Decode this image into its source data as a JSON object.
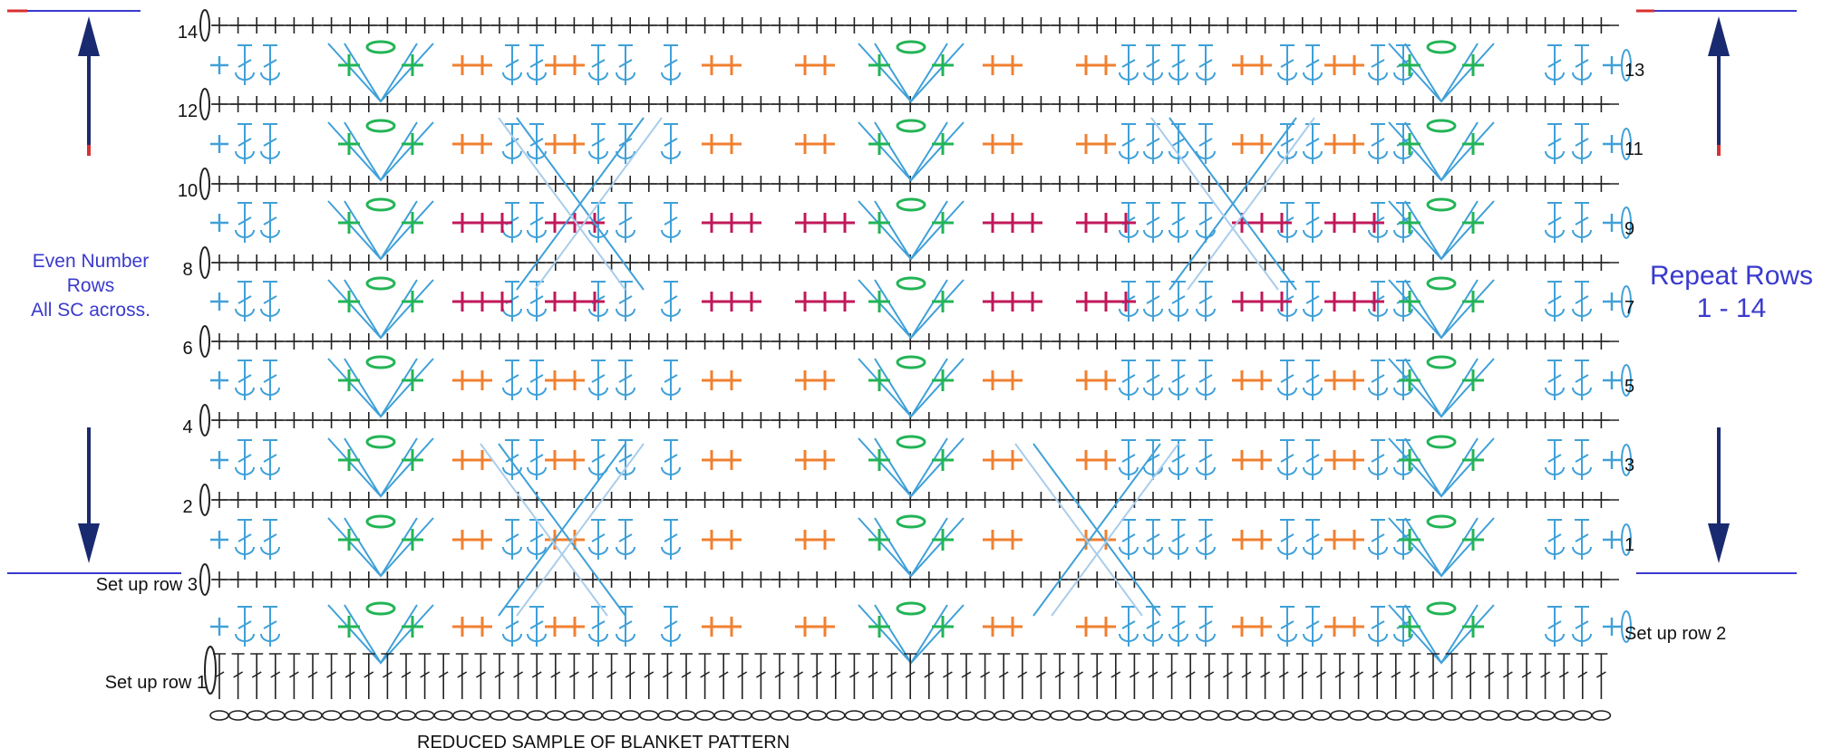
{
  "left_note": {
    "line1": "Even Number",
    "line2": "Rows",
    "line3": "All SC across."
  },
  "right_note": {
    "line1": "Repeat Rows",
    "line2": "1 - 14"
  },
  "caption": "REDUCED SAMPLE OF BLANKET PATTERN",
  "even_row_labels": [
    "14",
    "12",
    "10",
    "8",
    "6",
    "4",
    "2"
  ],
  "odd_row_labels": [
    "13",
    "11",
    "9",
    "7",
    "5",
    "3",
    "1"
  ],
  "setup_labels": {
    "row1": "Set up row 1",
    "row2": "Set up row 2",
    "row3": "Set up row 3"
  },
  "colors": {
    "note_blue": "#3a3acc",
    "arrow_navy": "#1a2a70",
    "accent_red": "#d83030",
    "grid_black": "#222222",
    "stitch_blue": "#3fa0d8",
    "light_blue": "#a9cdeb",
    "green": "#22b455",
    "orange": "#f08030",
    "magenta": "#c0185a"
  },
  "icons": {
    "sc": "plus-stitch-icon",
    "dc": "double-crochet-stitch-icon",
    "cluster": "cluster-v-icon",
    "chain": "chain-oval-icon",
    "arrow_up": "arrow-up-icon",
    "arrow_down": "arrow-down-icon"
  }
}
